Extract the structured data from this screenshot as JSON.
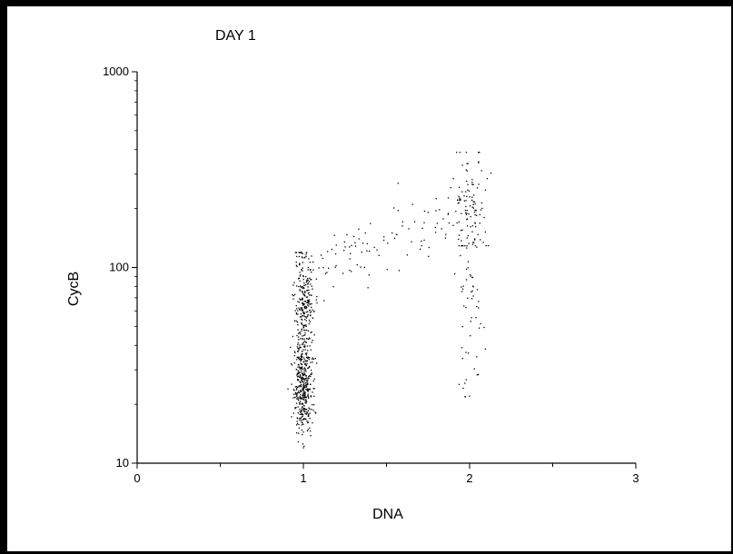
{
  "chart_data": {
    "type": "scatter",
    "title": "DAY 1",
    "xlabel": "DNA",
    "ylabel": "CycB",
    "xlim": [
      0,
      3
    ],
    "ylim": [
      10,
      1000
    ],
    "yscale": "log",
    "xticks": [
      "0",
      "1",
      "2",
      "3"
    ],
    "yticks": [
      "10",
      "100",
      "1000"
    ],
    "grid": false,
    "legend": "none",
    "point_color": "#000000",
    "series": [
      {
        "clusters": [
          {
            "x_mean": 0.995,
            "x_sd": 0.028,
            "y_min": 11,
            "y_max": 120,
            "y_center": 25,
            "log_sd": 0.12,
            "count": 420
          },
          {
            "x_mean": 1.0,
            "x_sd": 0.03,
            "y_min": 35,
            "y_max": 120,
            "y_center": 65,
            "log_sd": 0.13,
            "count": 260
          },
          {
            "x_min": 1.05,
            "x_max": 1.95,
            "y_start": 95,
            "y_end": 190,
            "log_sd": 0.09,
            "count": 95
          },
          {
            "x_mean": 2.0,
            "x_sd": 0.05,
            "y_min": 130,
            "y_max": 390,
            "y_center": 210,
            "log_sd": 0.12,
            "count": 110
          },
          {
            "x_mean": 2.0,
            "x_sd": 0.035,
            "y_min": 22,
            "y_max": 130,
            "y_center": 55,
            "log_sd": 0.22,
            "count": 55
          }
        ]
      }
    ]
  }
}
